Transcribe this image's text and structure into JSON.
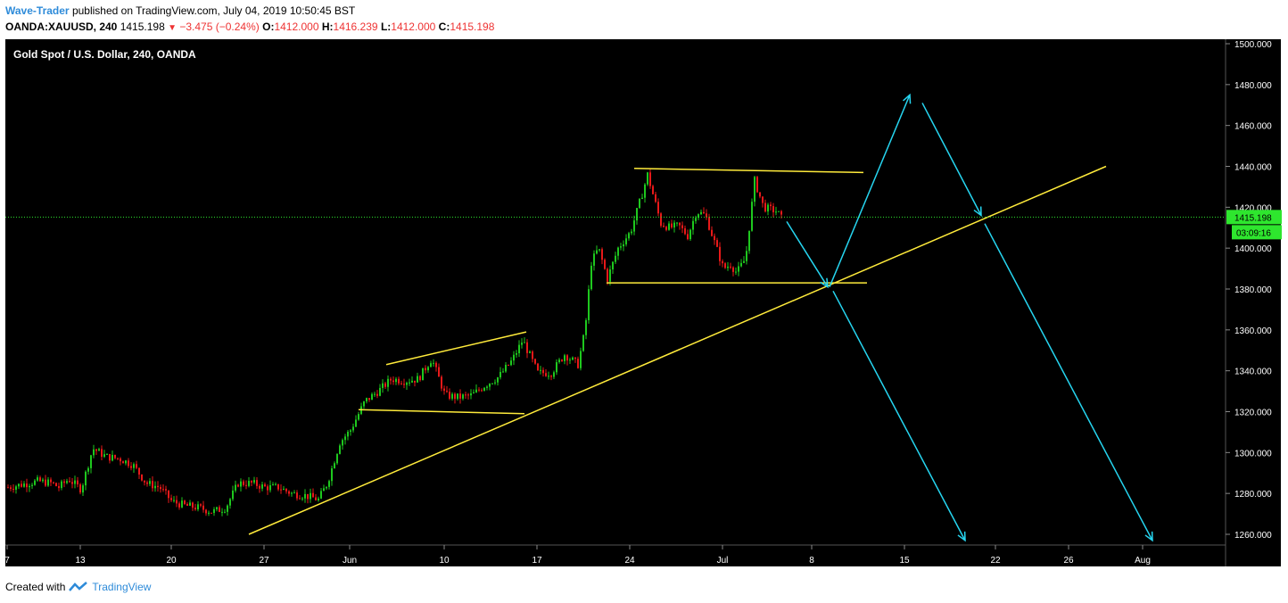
{
  "header": {
    "author": "Wave-Trader",
    "published_text": "published on TradingView.com, July 04, 2019 10:50:45 BST",
    "symbol": "OANDA:XAUUSD, 240",
    "last": "1415.198",
    "change": "−3.475 (−0.24%)",
    "o_label": "O:",
    "o_value": "1412.000",
    "h_label": "H:",
    "h_value": "1416.239",
    "l_label": "L:",
    "l_value": "1412.000",
    "c_label": "C:",
    "c_value": "1415.198"
  },
  "footer": {
    "created_with": "Created with",
    "brand": "TradingView"
  },
  "chart_data": {
    "type": "candlestick",
    "title": "Gold Spot / U.S. Dollar, 240, OANDA",
    "ylim": [
      1255,
      1502
    ],
    "y_ticks": [
      "1500.000",
      "1480.000",
      "1460.000",
      "1440.000",
      "1420.000",
      "1400.000",
      "1380.000",
      "1360.000",
      "1340.000",
      "1320.000",
      "1300.000",
      "1280.000",
      "1260.000"
    ],
    "x_ticks": [
      "7",
      "13",
      "20",
      "27",
      "Jun",
      "10",
      "17",
      "24",
      "Jul",
      "8",
      "15",
      "22",
      "26",
      "Aug"
    ],
    "last_price_label": "1415.198",
    "countdown_label": "03:09:16",
    "colors": {
      "up": "#1ec81e",
      "down": "#e81919",
      "trendline": "#ffeb3b",
      "projection": "#26d5f0",
      "last_price": "#2ee62e",
      "background": "#000000"
    },
    "price_path": [
      [
        "7",
        1283
      ],
      [
        "9",
        1286
      ],
      [
        "10",
        1285
      ],
      [
        "11",
        1283
      ],
      [
        "12",
        1287
      ],
      [
        "13",
        1282
      ],
      [
        "14",
        1302
      ],
      [
        "15",
        1298
      ],
      [
        "16",
        1297
      ],
      [
        "17",
        1294
      ],
      [
        "20",
        1282
      ],
      [
        "21",
        1276
      ],
      [
        "22",
        1273
      ],
      [
        "23",
        1271
      ],
      [
        "24",
        1273
      ],
      [
        "27",
        1285
      ],
      [
        "28",
        1285
      ],
      [
        "29",
        1281
      ],
      [
        "30",
        1279
      ],
      [
        "31",
        1277
      ],
      [
        "Jun 3",
        1311
      ],
      [
        "Jun 4",
        1325
      ],
      [
        "Jun 5",
        1333
      ],
      [
        "Jun 6",
        1336
      ],
      [
        "Jun 7",
        1341
      ],
      [
        "10",
        1328
      ],
      [
        "11",
        1327
      ],
      [
        "12",
        1330
      ],
      [
        "13",
        1335
      ],
      [
        "14",
        1344
      ],
      [
        "17",
        1339
      ],
      [
        "18",
        1344
      ],
      [
        "19",
        1346
      ],
      [
        "20",
        1393
      ],
      [
        "21",
        1400
      ],
      [
        "24",
        1407
      ],
      [
        "25",
        1428
      ],
      [
        "26",
        1410
      ],
      [
        "27",
        1411
      ],
      [
        "28",
        1406
      ],
      [
        "Jul 1",
        1391
      ],
      [
        "Jul 2",
        1402
      ],
      [
        "Jul 3",
        1425
      ],
      [
        "Jul 4",
        1415
      ]
    ],
    "annotations": {
      "trendlines": [
        {
          "from": [
            "26",
            1260
          ],
          "to": [
            "30",
            1440
          ]
        },
        {
          "from": [
            "Jun 5",
            1343
          ],
          "to": [
            "14",
            1359
          ]
        },
        {
          "from": [
            "Jun 3",
            1321
          ],
          "to": [
            "14",
            1319
          ]
        },
        {
          "from": [
            "24",
            1439
          ],
          "to": [
            "Jul 10",
            1437
          ]
        },
        {
          "from": [
            "22",
            1383
          ],
          "to": [
            "Jul 10",
            1383
          ]
        }
      ],
      "projection_arrows": [
        {
          "from": [
            "Jul 5",
            1413
          ],
          "to": [
            "Jul 9",
            1381
          ]
        },
        {
          "from": [
            "Jul 9",
            1381
          ],
          "to": [
            "15",
            1475
          ]
        },
        {
          "from": [
            "15",
            1471
          ],
          "to": [
            "21",
            1416
          ]
        },
        {
          "from": [
            "Jul 9",
            1379
          ],
          "to": [
            "Jul 19",
            1257
          ]
        },
        {
          "from": [
            "21",
            1412
          ],
          "to": [
            "Aug 1",
            1257
          ]
        }
      ]
    }
  }
}
